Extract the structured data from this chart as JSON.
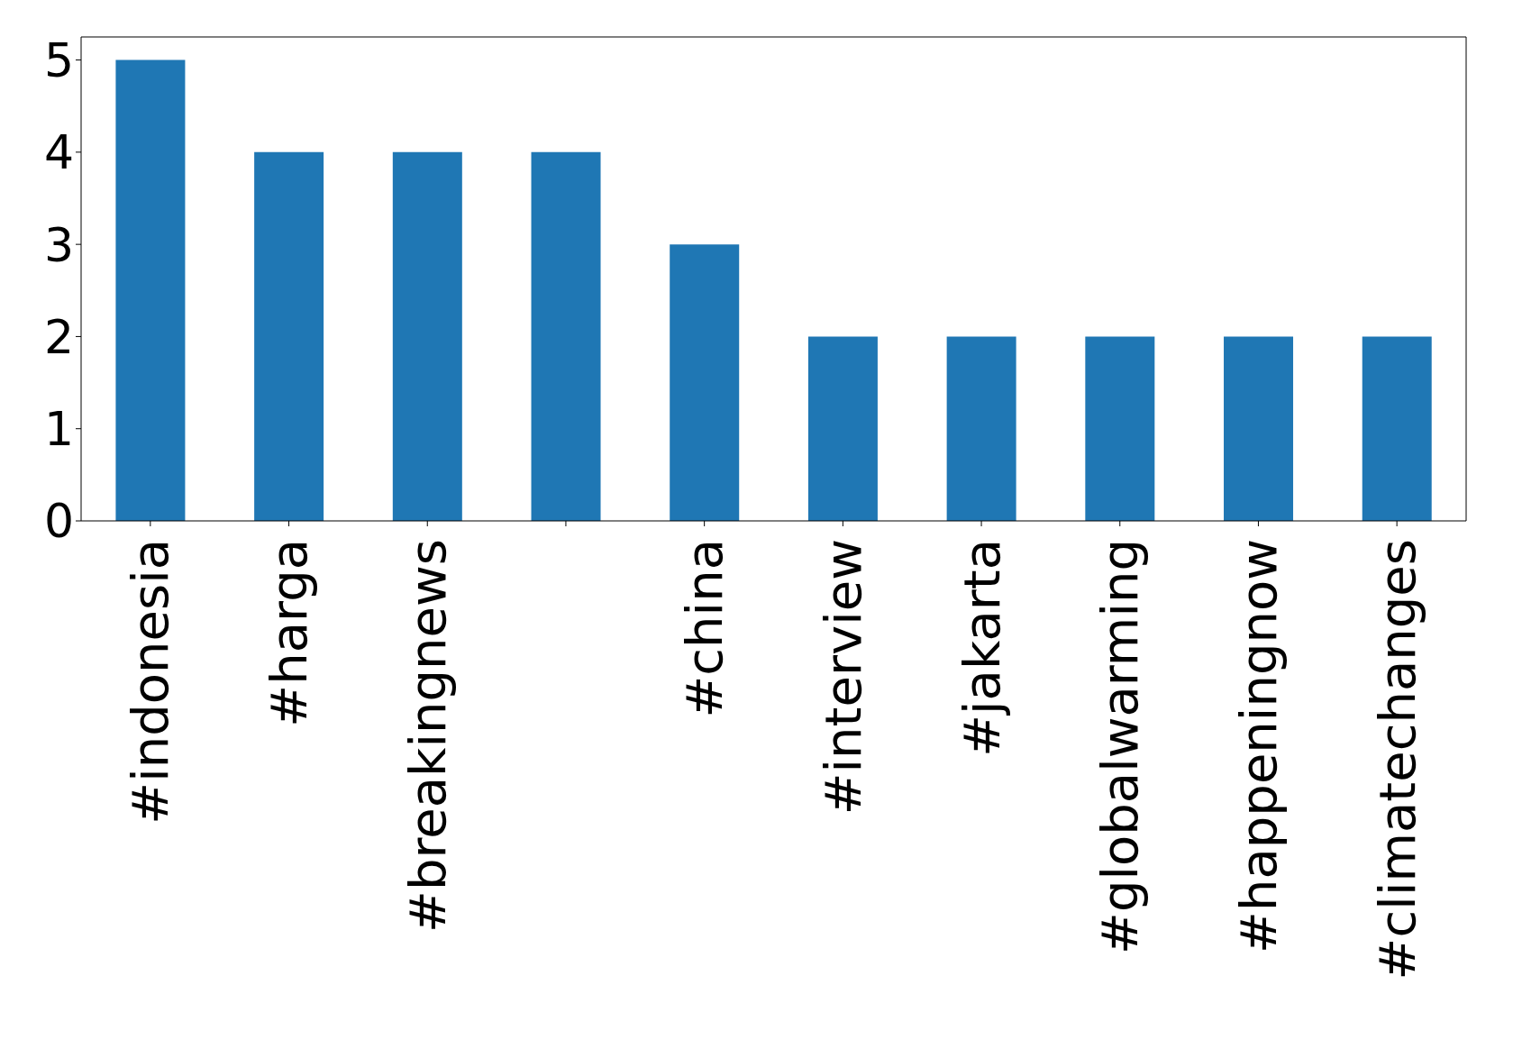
{
  "chart_data": {
    "type": "bar",
    "categories": [
      "#indonesia",
      "#harga",
      "#breakingnews",
      null,
      "#china",
      "#interview",
      "#jakarta",
      "#globalwarming",
      "#happeningnow",
      "#climatechanges"
    ],
    "values": [
      5,
      4,
      4,
      4,
      3,
      2,
      2,
      2,
      2,
      2
    ],
    "color": "#1f77b4",
    "ylim": [
      0,
      5.25
    ],
    "yticks": [
      0,
      1,
      2,
      3,
      4,
      5
    ],
    "grid": false
  }
}
